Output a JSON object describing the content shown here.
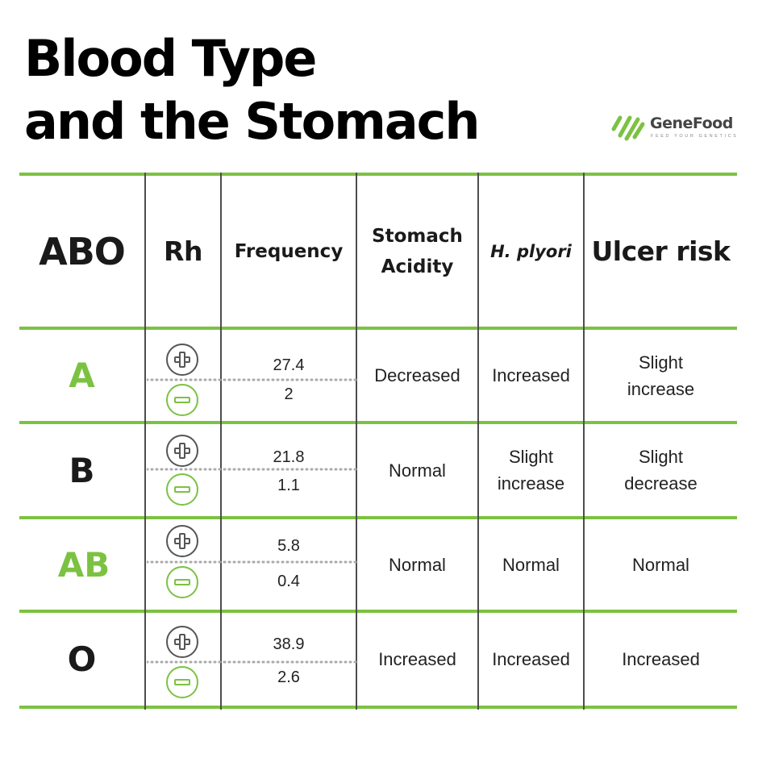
{
  "title": {
    "line1": "Blood Type",
    "line2": "and the Stomach"
  },
  "logo": {
    "brand": "GeneFood",
    "tagline": "FEED YOUR GENETICS"
  },
  "headers": {
    "abo": "ABO",
    "rh": "Rh",
    "frequency": "Frequency",
    "acidity_line1": "Stomach",
    "acidity_line2": "Acidity",
    "hpylori": "H. plyori",
    "ulcer": "Ulcer risk"
  },
  "rows": [
    {
      "abo": "A",
      "freq_pos": "27.4",
      "freq_neg": "2",
      "acidity": "Decreased",
      "hpylori": "Increased",
      "ulcer_line1": "Slight",
      "ulcer_line2": "increase"
    },
    {
      "abo": "B",
      "freq_pos": "21.8",
      "freq_neg": "1.1",
      "acidity": "Normal",
      "hpylori_line1": "Slight",
      "hpylori_line2": "increase",
      "ulcer_line1": "Slight",
      "ulcer_line2": "decrease"
    },
    {
      "abo": "AB",
      "freq_pos": "5.8",
      "freq_neg": "0.4",
      "acidity": "Normal",
      "hpylori": "Normal",
      "ulcer": "Normal"
    },
    {
      "abo": "O",
      "freq_pos": "38.9",
      "freq_neg": "2.6",
      "acidity": "Increased",
      "hpylori": "Increased",
      "ulcer": "Increased"
    }
  ],
  "colors": {
    "accent_green": "#7cc242",
    "text_dark": "#1a1a1a",
    "divider": "#4d4d4d"
  },
  "icons": {
    "rh_positive": "plus-circle-icon",
    "rh_negative": "minus-circle-icon",
    "logo_mark": "genefood-leaf-icon"
  }
}
